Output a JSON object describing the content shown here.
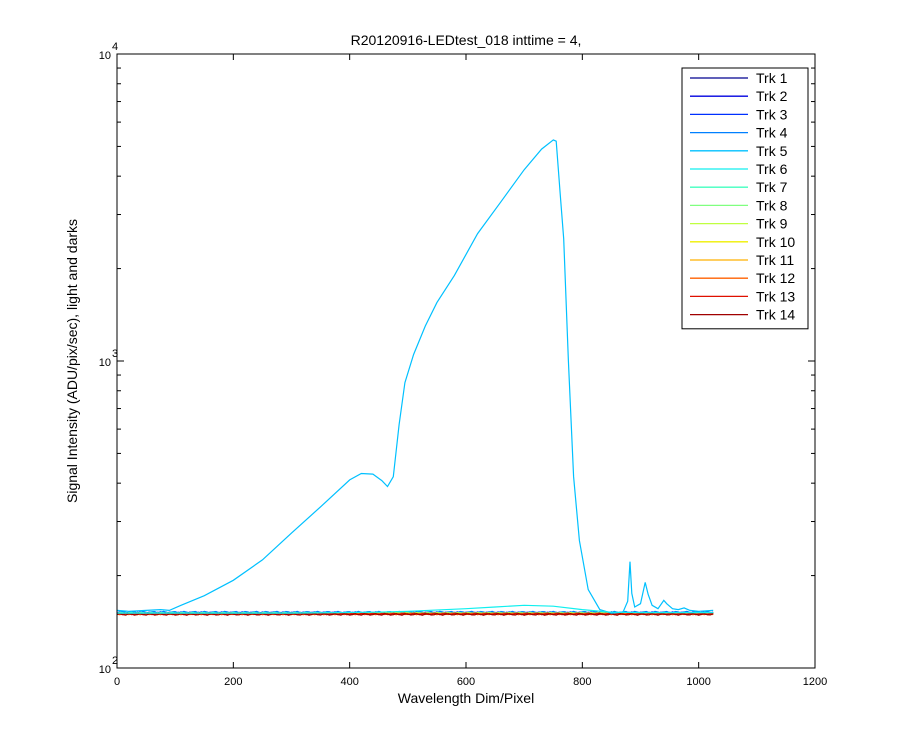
{
  "chart_data": {
    "type": "line",
    "title": "R20120916-LEDtest_018 inttime = 4,",
    "xlabel": "Wavelength Dim/Pixel",
    "ylabel": "Signal Intensity (ADU/pix/sec), light and darks",
    "xlim": [
      0,
      1200
    ],
    "ylim": [
      100,
      10000
    ],
    "yscale": "log",
    "xticks": [
      0,
      200,
      400,
      600,
      800,
      1000,
      1200
    ],
    "yticks": [
      {
        "base": "10",
        "exp": "2",
        "value": 100
      },
      {
        "base": "10",
        "exp": "3",
        "value": 1000
      },
      {
        "base": "10",
        "exp": "4",
        "value": 10000
      }
    ],
    "grid": false,
    "legend_position": "top-right",
    "series": [
      {
        "name": "Trk 1",
        "color": "#00008f",
        "baseline": 151
      },
      {
        "name": "Trk 2",
        "color": "#0000df",
        "baseline": 151
      },
      {
        "name": "Trk 3",
        "color": "#0030ff",
        "baseline": 151.5
      },
      {
        "name": "Trk 4",
        "color": "#0080ff",
        "baseline": 152
      },
      {
        "name": "Trk 5",
        "color": "#00c0ff",
        "points": [
          [
            0,
            154
          ],
          [
            20,
            153
          ],
          [
            50,
            154
          ],
          [
            75,
            155
          ],
          [
            90,
            154
          ],
          [
            110,
            160
          ],
          [
            150,
            172
          ],
          [
            200,
            193
          ],
          [
            250,
            225
          ],
          [
            300,
            275
          ],
          [
            350,
            335
          ],
          [
            400,
            410
          ],
          [
            420,
            430
          ],
          [
            440,
            428
          ],
          [
            455,
            408
          ],
          [
            465,
            390
          ],
          [
            475,
            420
          ],
          [
            485,
            620
          ],
          [
            495,
            850
          ],
          [
            510,
            1050
          ],
          [
            530,
            1300
          ],
          [
            550,
            1550
          ],
          [
            580,
            1900
          ],
          [
            620,
            2600
          ],
          [
            660,
            3300
          ],
          [
            700,
            4200
          ],
          [
            730,
            4900
          ],
          [
            750,
            5250
          ],
          [
            755,
            5200
          ],
          [
            762,
            3500
          ],
          [
            768,
            2500
          ],
          [
            776,
            1000
          ],
          [
            785,
            420
          ],
          [
            795,
            260
          ],
          [
            810,
            180
          ],
          [
            830,
            155
          ],
          [
            850,
            151
          ],
          [
            870,
            152
          ],
          [
            878,
            165
          ],
          [
            882,
            222
          ],
          [
            885,
            175
          ],
          [
            890,
            158
          ],
          [
            900,
            162
          ],
          [
            908,
            190
          ],
          [
            913,
            174
          ],
          [
            920,
            160
          ],
          [
            930,
            156
          ],
          [
            940,
            166
          ],
          [
            945,
            162
          ],
          [
            955,
            156
          ],
          [
            965,
            155
          ],
          [
            975,
            157
          ],
          [
            985,
            154
          ],
          [
            1000,
            153
          ],
          [
            1025,
            154
          ]
        ]
      },
      {
        "name": "Trk 6",
        "color": "#10efef",
        "points": [
          [
            0,
            151
          ],
          [
            100,
            151
          ],
          [
            300,
            151
          ],
          [
            450,
            152
          ],
          [
            500,
            153
          ],
          [
            600,
            156
          ],
          [
            650,
            158
          ],
          [
            700,
            160
          ],
          [
            750,
            159
          ],
          [
            800,
            155
          ],
          [
            850,
            152
          ],
          [
            900,
            151.5
          ],
          [
            1025,
            151.5
          ]
        ]
      },
      {
        "name": "Trk 7",
        "color": "#40ffbf",
        "baseline": 151
      },
      {
        "name": "Trk 8",
        "color": "#80ff80",
        "baseline": 150.5
      },
      {
        "name": "Trk 9",
        "color": "#c0ff40",
        "baseline": 150.5
      },
      {
        "name": "Trk 10",
        "color": "#efef00",
        "baseline": 150.5
      },
      {
        "name": "Trk 11",
        "color": "#ffb000",
        "baseline": 150
      },
      {
        "name": "Trk 12",
        "color": "#ff6000",
        "baseline": 150
      },
      {
        "name": "Trk 13",
        "color": "#df1000",
        "baseline": 150
      },
      {
        "name": "Trk 14",
        "color": "#a00000",
        "baseline": 149.5
      }
    ]
  }
}
